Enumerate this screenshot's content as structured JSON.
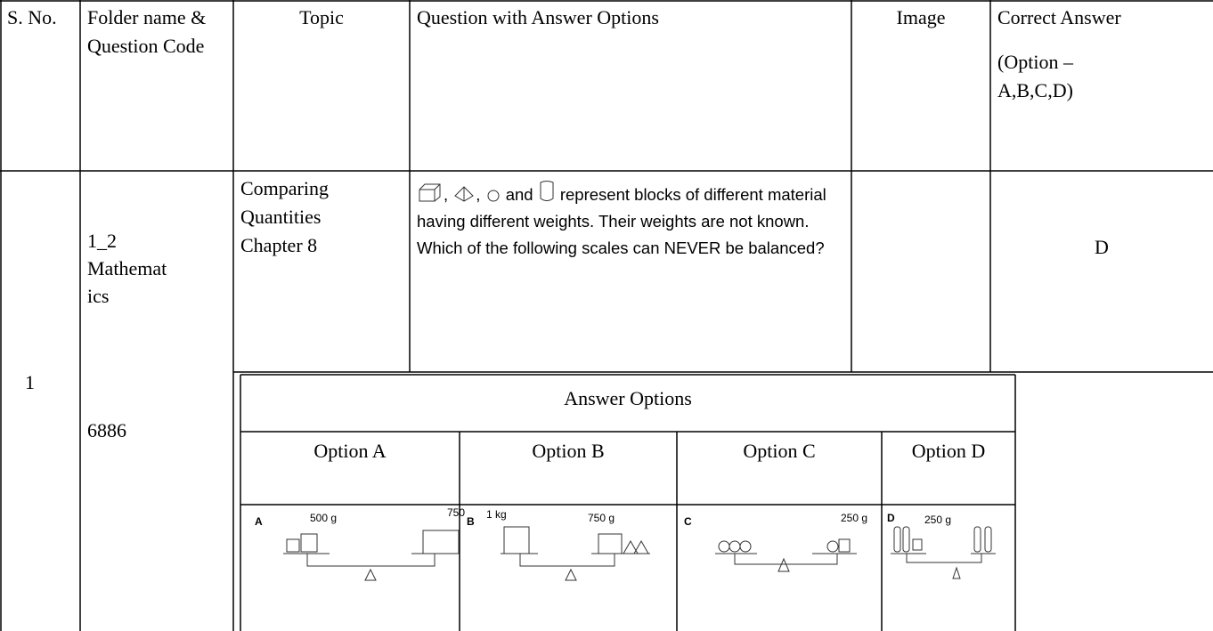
{
  "header": {
    "s_no": "S. No.",
    "folder": "Folder name & Question Code",
    "topic": "Topic",
    "question": "Question with Answer Options",
    "image": "Image",
    "correct_answer": [
      "Correct Answer",
      "(Option – A,B,C,D)"
    ]
  },
  "row": {
    "s_no": "1",
    "folder_lines": [
      "1_2",
      "Mathemat",
      "ics"
    ],
    "code": "6886",
    "topic": [
      "Comparing Quantities",
      "Chapter 8"
    ],
    "question_parts": [
      ",",
      ",",
      "and",
      "represent blocks of different material having different weights. Their weights are not known. Which of the following scales can NEVER be balanced?"
    ],
    "correct": "D"
  },
  "answer_options": {
    "title": "Answer Options",
    "options": [
      {
        "label": "Option A",
        "image_labels": [
          "A",
          "500 g",
          "750"
        ]
      },
      {
        "label": "Option B",
        "image_labels": [
          "B",
          "1 kg",
          "750 g"
        ]
      },
      {
        "label": "Option C",
        "image_labels": [
          "C",
          "250 g"
        ]
      },
      {
        "label": "Option D",
        "image_labels": [
          "D",
          "250 g"
        ]
      }
    ]
  }
}
